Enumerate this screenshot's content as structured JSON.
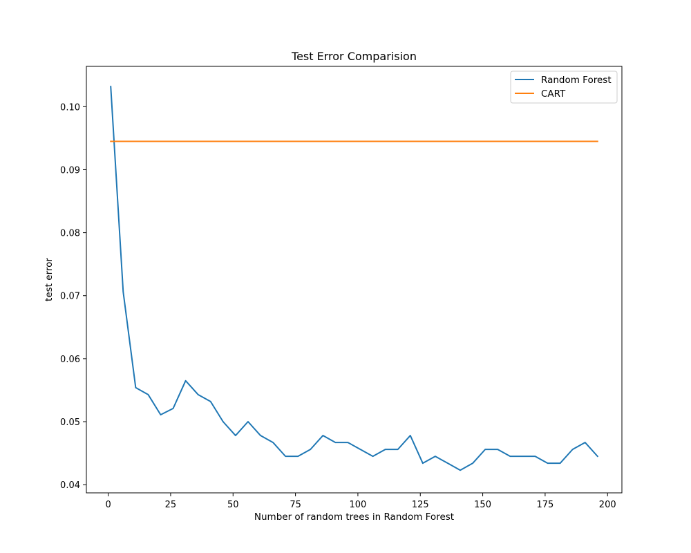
{
  "chart_data": {
    "type": "line",
    "title": "Test Error Comparision",
    "xlabel": "Number of random trees in Random Forest",
    "ylabel": "test error",
    "xlim": [
      -8.75,
      205.75
    ],
    "ylim": [
      0.0387,
      0.1064
    ],
    "xticks": [
      0,
      25,
      50,
      75,
      100,
      125,
      150,
      175,
      200
    ],
    "yticks": [
      0.04,
      0.05,
      0.06,
      0.07,
      0.08,
      0.09,
      0.1
    ],
    "ytick_labels": [
      "0.04",
      "0.05",
      "0.06",
      "0.07",
      "0.08",
      "0.09",
      "0.10"
    ],
    "grid": false,
    "legend_position": "top-right",
    "x": [
      1,
      6,
      11,
      16,
      21,
      26,
      31,
      36,
      41,
      46,
      51,
      56,
      61,
      66,
      71,
      76,
      81,
      86,
      91,
      96,
      101,
      106,
      111,
      116,
      121,
      126,
      131,
      136,
      141,
      146,
      151,
      156,
      161,
      166,
      171,
      176,
      181,
      186,
      191,
      196
    ],
    "series": [
      {
        "name": "Random Forest",
        "color": "#1f77b4",
        "values": [
          0.1032,
          0.0706,
          0.0554,
          0.0543,
          0.0511,
          0.0521,
          0.0565,
          0.0543,
          0.0532,
          0.05,
          0.0478,
          0.05,
          0.0478,
          0.0467,
          0.0445,
          0.0445,
          0.0456,
          0.0478,
          0.0467,
          0.0467,
          0.0456,
          0.0445,
          0.0456,
          0.0456,
          0.0478,
          0.0434,
          0.0445,
          0.0434,
          0.0423,
          0.0434,
          0.0456,
          0.0456,
          0.0445,
          0.0445,
          0.0445,
          0.0434,
          0.0434,
          0.0456,
          0.0467,
          0.0445
        ]
      },
      {
        "name": "CART",
        "color": "#ff7f0e",
        "values": [
          0.0945,
          0.0945,
          0.0945,
          0.0945,
          0.0945,
          0.0945,
          0.0945,
          0.0945,
          0.0945,
          0.0945,
          0.0945,
          0.0945,
          0.0945,
          0.0945,
          0.0945,
          0.0945,
          0.0945,
          0.0945,
          0.0945,
          0.0945,
          0.0945,
          0.0945,
          0.0945,
          0.0945,
          0.0945,
          0.0945,
          0.0945,
          0.0945,
          0.0945,
          0.0945,
          0.0945,
          0.0945,
          0.0945,
          0.0945,
          0.0945,
          0.0945,
          0.0945,
          0.0945,
          0.0945,
          0.0945
        ]
      }
    ]
  }
}
